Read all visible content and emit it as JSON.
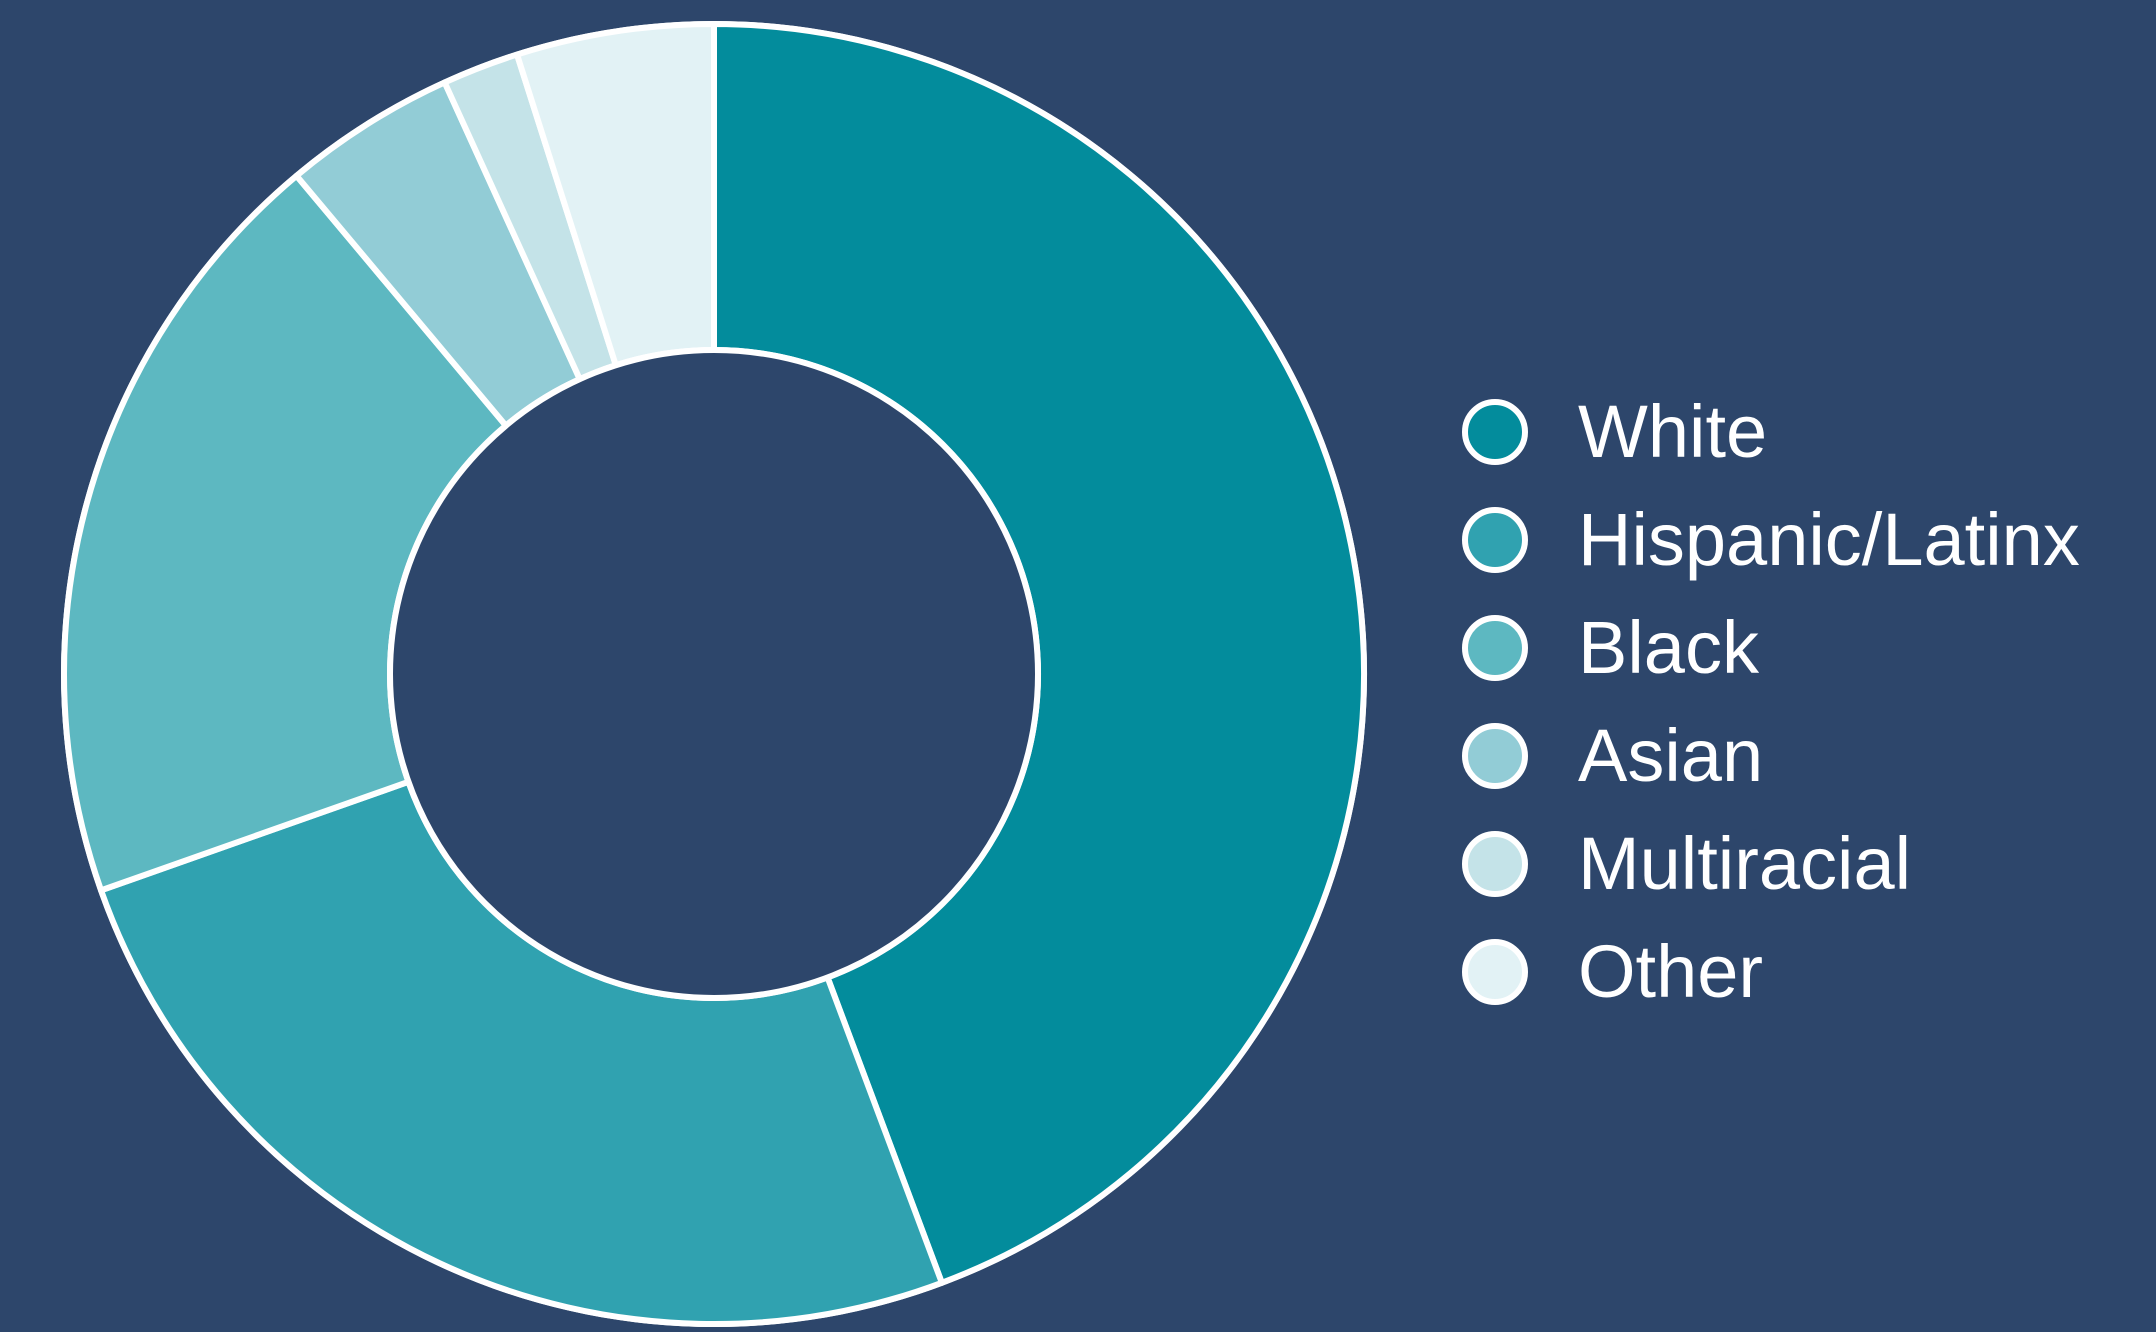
{
  "chart_data": {
    "type": "pie",
    "donut": true,
    "title": "",
    "categories": [
      "White",
      "Hispanic/Latinx",
      "Black",
      "Asian",
      "Multiracial",
      "Other"
    ],
    "values": [
      44.3,
      25.3,
      19.3,
      4.3,
      1.9,
      4.9
    ],
    "unit": "%",
    "colors": [
      "#038c9c",
      "#30a2b0",
      "#5db8c1",
      "#92ccd6",
      "#c4e3e8",
      "#e2f2f5"
    ],
    "legend_position": "right",
    "start_angle": "top",
    "direction": "clockwise"
  },
  "colors": {
    "background": "#2d466b",
    "separator": "#ffffff",
    "text": "#ffffff"
  }
}
